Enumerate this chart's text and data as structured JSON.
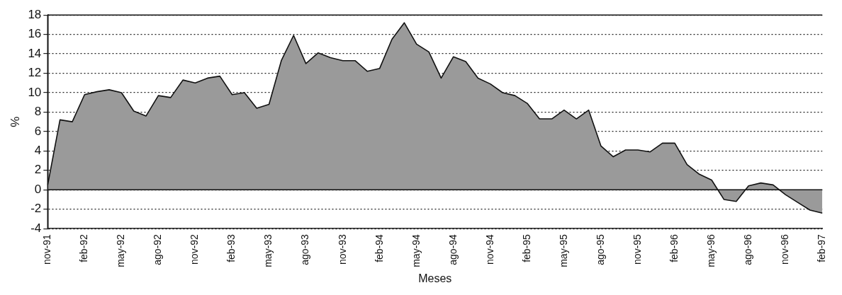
{
  "chart_data": {
    "type": "area",
    "xlabel": "Meses",
    "ylabel": "%",
    "categories": [
      "nov-91",
      null,
      null,
      "feb-92",
      null,
      null,
      "may-92",
      null,
      null,
      "ago-92",
      null,
      null,
      "nov-92",
      null,
      null,
      "feb-93",
      null,
      null,
      "may-93",
      null,
      null,
      "ago-93",
      null,
      null,
      "nov-93",
      null,
      null,
      "feb-94",
      null,
      null,
      "may-94",
      null,
      null,
      "ago-94",
      null,
      null,
      "nov-94",
      null,
      null,
      "feb-95",
      null,
      null,
      "may-95",
      null,
      null,
      "ago-95",
      null,
      null,
      "nov-95",
      null,
      null,
      "feb-96",
      null,
      null,
      "may-96",
      null,
      null,
      "ago-96",
      null,
      null,
      "nov-96",
      null,
      null,
      "feb-97"
    ],
    "series": [
      {
        "color": "#9a9a9a",
        "values": [
          0.5,
          7.2,
          7.0,
          9.8,
          10.1,
          10.3,
          10.0,
          8.1,
          7.6,
          9.7,
          9.5,
          11.3,
          11.0,
          11.5,
          11.7,
          9.8,
          10.0,
          8.4,
          8.8,
          13.3,
          15.9,
          13.0,
          14.1,
          13.6,
          13.3,
          13.3,
          12.2,
          12.5,
          15.5,
          17.2,
          15.0,
          14.2,
          11.5,
          13.7,
          13.2,
          11.5,
          10.9,
          10.0,
          9.7,
          8.9,
          7.3,
          7.3,
          8.2,
          7.3,
          8.2,
          4.5,
          3.4,
          4.1,
          4.1,
          3.9,
          4.8,
          4.8,
          2.6,
          1.6,
          1.0,
          -1.0,
          -1.2,
          0.4,
          0.7,
          0.5,
          -0.5,
          -1.3,
          -2.1,
          -2.4
        ]
      }
    ],
    "ylim": [
      -4,
      18
    ],
    "yticks": [
      -4,
      -2,
      0,
      2,
      4,
      6,
      8,
      10,
      12,
      14,
      16,
      18
    ],
    "grid": "y",
    "legend": false,
    "line_style": "solid",
    "marker": "none"
  }
}
